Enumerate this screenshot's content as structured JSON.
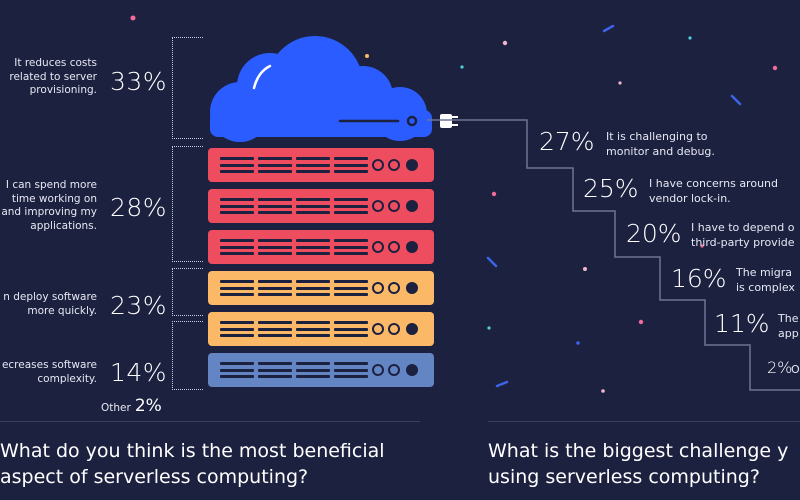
{
  "left_section": {
    "question": "What do you think is the most beneficial\naspect of serverless computing?",
    "answers": [
      {
        "text": "It reduces costs\nrelated to server\nprovisioning.",
        "pct": "33%"
      },
      {
        "text": "I can spend more\ntime working on\nand improving my\napplications.",
        "pct": "28%"
      },
      {
        "text": "n deploy software\nmore quickly.",
        "pct": "23%"
      },
      {
        "text": "ecreases software\ncomplexity.",
        "pct": "14%"
      }
    ],
    "other": {
      "label": "Other",
      "pct": "2%"
    }
  },
  "right_section": {
    "question": "What is the biggest challenge y\nusing serverless computing?",
    "answers": [
      {
        "text": "It is challenging to\nmonitor and debug.",
        "pct": "27%"
      },
      {
        "text": "I have concerns around\nvendor lock-in.",
        "pct": "25%"
      },
      {
        "text": "I have to depend o\nthird-party provide",
        "pct": "20%"
      },
      {
        "text": "The migra\nis complex",
        "pct": "16%"
      },
      {
        "text": "The\napp",
        "pct": "11%"
      },
      {
        "text": "O",
        "pct": "2%"
      }
    ]
  },
  "colors": {
    "background": "#1d2140",
    "cloud": "#2a5cff",
    "server_red": "#ee4d5f",
    "server_orange": "#fbb867",
    "server_blue": "#6485c4",
    "star_pink": "#f36b9b",
    "star_blue": "#3b64e8",
    "star_cyan": "#4fd1d9"
  }
}
